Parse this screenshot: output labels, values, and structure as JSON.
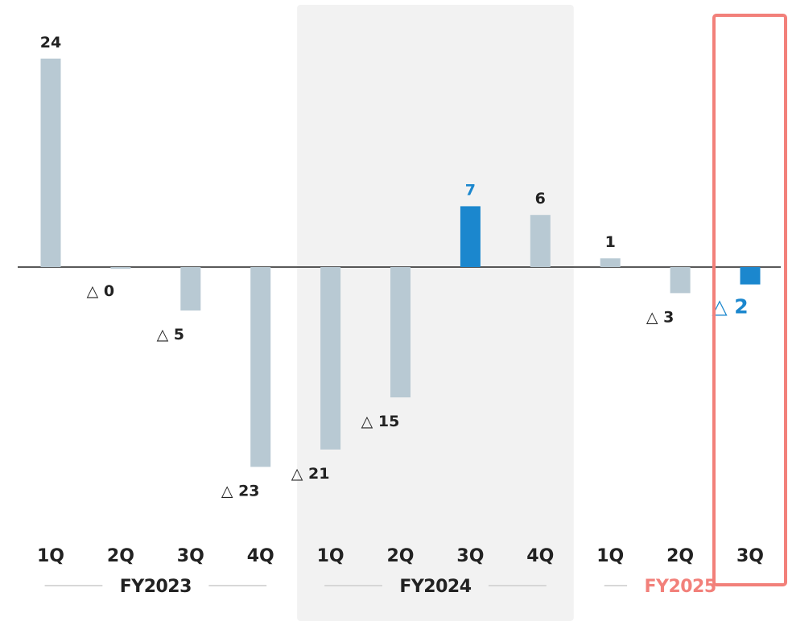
{
  "colors": {
    "bar": "#b8c9d3",
    "bar_highlight": "#1b87ce",
    "label": "#222222",
    "label_highlight": "#1b87ce",
    "fy_highlight": "#f2807a",
    "band": "#f2f2f2",
    "highlight_frame": "#f2807a",
    "baseline": "#222222",
    "year_divider": "#cccccc"
  },
  "chart_data": {
    "type": "bar",
    "title": "",
    "xlabel": "",
    "ylabel": "",
    "ylim": [
      -27,
      30
    ],
    "grid": false,
    "legend": "none",
    "negative_prefix": "△",
    "categories": [
      "1Q",
      "2Q",
      "3Q",
      "4Q",
      "1Q",
      "2Q",
      "3Q",
      "4Q",
      "1Q",
      "2Q",
      "3Q"
    ],
    "groups": [
      {
        "label": "FY2023",
        "start": 0,
        "end": 3,
        "shaded": false,
        "highlighted": false
      },
      {
        "label": "FY2024",
        "start": 4,
        "end": 7,
        "shaded": true,
        "highlighted": false
      },
      {
        "label": "FY2025",
        "start": 8,
        "end": 10,
        "shaded": false,
        "highlighted": true
      }
    ],
    "values": [
      24,
      -0.2,
      -5,
      -23,
      -21,
      -15,
      7,
      6,
      1,
      -3,
      -2
    ],
    "data_labels": [
      "24",
      "△ 0",
      "△ 5",
      "△ 23",
      "△ 21",
      "△ 15",
      "7",
      "6",
      "1",
      "△ 3",
      "△ 2"
    ],
    "highlighted_bars": [
      6,
      10
    ],
    "framed_bar": 10
  }
}
